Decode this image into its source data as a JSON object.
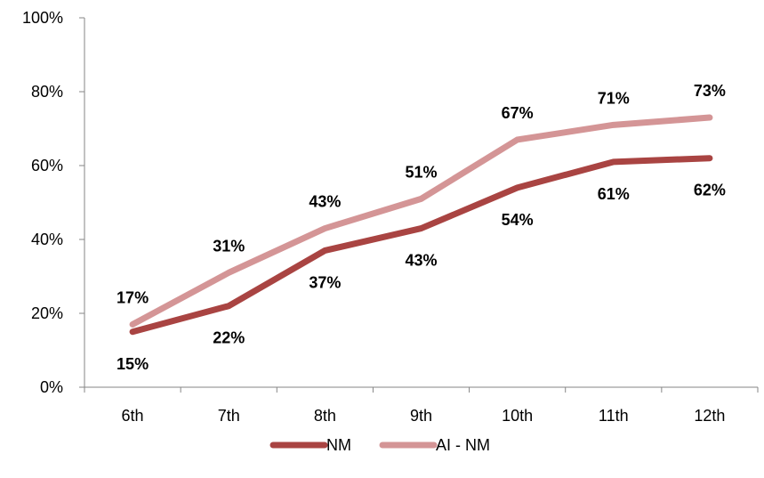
{
  "chart_data": {
    "type": "line",
    "categories": [
      "6th",
      "7th",
      "8th",
      "9th",
      "10th",
      "11th",
      "12th"
    ],
    "series": [
      {
        "name": "NM",
        "values": [
          15,
          22,
          37,
          43,
          54,
          61,
          62
        ],
        "labels": [
          "15%",
          "22%",
          "37%",
          "43%",
          "54%",
          "61%",
          "62%"
        ],
        "color": "#A94442",
        "label_position": "below"
      },
      {
        "name": "AI - NM",
        "values": [
          17,
          31,
          43,
          51,
          67,
          71,
          73
        ],
        "labels": [
          "17%",
          "31%",
          "43%",
          "51%",
          "67%",
          "71%",
          "73%"
        ],
        "color": "#D49596",
        "label_position": "above"
      }
    ],
    "ylim": [
      0,
      100
    ],
    "yticks": [
      0,
      20,
      40,
      60,
      80,
      100
    ],
    "ytick_labels": [
      "0%",
      "20%",
      "40%",
      "60%",
      "80%",
      "100%"
    ],
    "grid": false,
    "legend_position": "bottom"
  }
}
